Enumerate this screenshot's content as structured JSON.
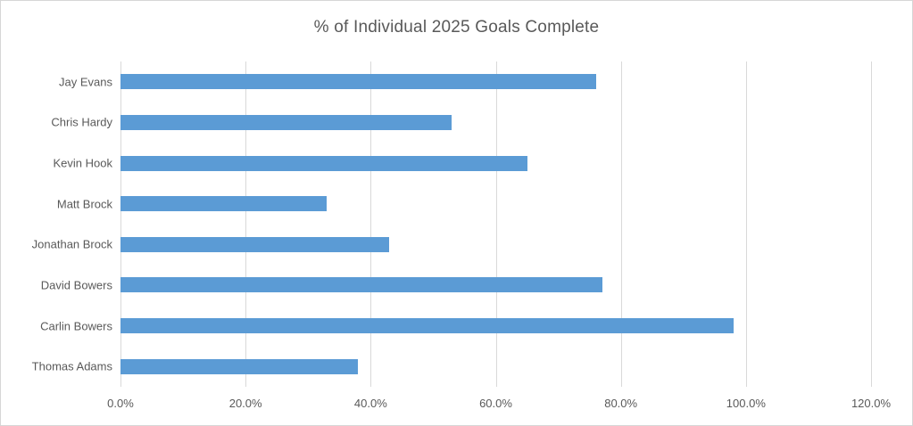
{
  "chart_data": {
    "type": "bar",
    "orientation": "horizontal",
    "title": "% of Individual 2025 Goals Complete",
    "categories": [
      "Jay Evans",
      "Chris Hardy",
      "Kevin Hook",
      "Matt Brock",
      "Jonathan Brock",
      "David Bowers",
      "Carlin Bowers",
      "Thomas Adams"
    ],
    "values_pct": [
      76,
      53,
      65,
      33,
      43,
      77,
      98,
      38
    ],
    "xlabel": "",
    "ylabel": "",
    "xlim": [
      0,
      120
    ],
    "x_ticks": [
      {
        "value": 0,
        "label": "0.0%"
      },
      {
        "value": 20,
        "label": "20.0%"
      },
      {
        "value": 40,
        "label": "40.0%"
      },
      {
        "value": 60,
        "label": "60.0%"
      },
      {
        "value": 80,
        "label": "80.0%"
      },
      {
        "value": 100,
        "label": "100.0%"
      },
      {
        "value": 120,
        "label": "120.0%"
      }
    ],
    "grid": true,
    "legend": false,
    "colors": {
      "bar": "#5B9BD5",
      "gridline": "#D9D9D9",
      "text": "#595959",
      "frame_border": "#D6D6D6",
      "background": "#FFFFFF"
    }
  }
}
